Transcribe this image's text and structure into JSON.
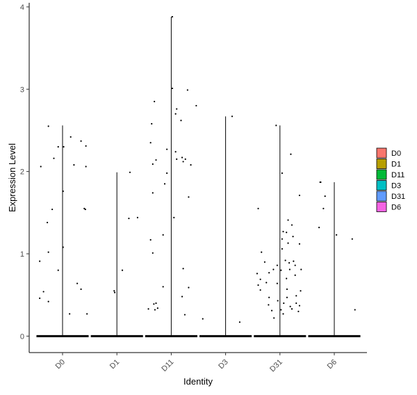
{
  "chart_data": {
    "type": "scatter",
    "subtype": "violin-jitter",
    "title": "",
    "xlabel": "Identity",
    "ylabel": "Expression Level",
    "ylim": [
      -0.2,
      4.05
    ],
    "yticks": [
      0,
      1,
      2,
      3,
      4
    ],
    "ytick_labels": [
      "0",
      "1",
      "2",
      "3",
      "4"
    ],
    "categories": [
      "D0",
      "D1",
      "D11",
      "D3",
      "D31",
      "D6"
    ],
    "legend": {
      "position": "right",
      "entries": [
        {
          "label": "D0",
          "color": "#F8766D"
        },
        {
          "label": "D1",
          "color": "#B79F00"
        },
        {
          "label": "D11",
          "color": "#00BA38"
        },
        {
          "label": "D3",
          "color": "#00BFC4"
        },
        {
          "label": "D31",
          "color": "#619CFF"
        },
        {
          "label": "D6",
          "color": "#F564E3"
        }
      ]
    },
    "grid": false,
    "violin_max": [
      2.56,
      1.99,
      3.88,
      2.67,
      2.56,
      1.87
    ],
    "series": [
      {
        "category": "D0",
        "points": [
          [
            -0.4,
            2.06
          ],
          [
            -0.26,
            2.55
          ],
          [
            -0.16,
            2.16
          ],
          [
            -0.08,
            2.3
          ],
          [
            0.02,
            2.3
          ],
          [
            0.15,
            2.42
          ],
          [
            0.21,
            2.08
          ],
          [
            0.34,
            2.37
          ],
          [
            0.43,
            2.31
          ],
          [
            0.43,
            2.06
          ],
          [
            -0.19,
            1.54
          ],
          [
            0.01,
            1.76
          ],
          [
            0.4,
            1.55
          ],
          [
            0.42,
            1.54
          ],
          [
            -0.28,
            1.38
          ],
          [
            0.01,
            1.08
          ],
          [
            -0.26,
            1.02
          ],
          [
            -0.42,
            0.91
          ],
          [
            -0.08,
            0.8
          ],
          [
            0.27,
            0.64
          ],
          [
            0.34,
            0.57
          ],
          [
            -0.35,
            0.54
          ],
          [
            -0.42,
            0.46
          ],
          [
            -0.26,
            0.42
          ],
          [
            0.13,
            0.27
          ],
          [
            0.45,
            0.27
          ]
        ]
      },
      {
        "category": "D1",
        "points": [
          [
            -0.05,
            0.55
          ],
          [
            -0.04,
            0.53
          ],
          [
            0.1,
            0.8
          ],
          [
            0.24,
            1.99
          ],
          [
            0.22,
            1.43
          ],
          [
            0.38,
            1.44
          ]
        ]
      },
      {
        "category": "D11",
        "points": [
          [
            0.02,
            3.88
          ],
          [
            0.02,
            3.01
          ],
          [
            0.3,
            2.99
          ],
          [
            0.1,
            2.76
          ],
          [
            0.08,
            2.7
          ],
          [
            -0.31,
            2.85
          ],
          [
            0.46,
            2.8
          ],
          [
            0.18,
            2.62
          ],
          [
            -0.36,
            2.58
          ],
          [
            -0.38,
            2.35
          ],
          [
            -0.08,
            2.27
          ],
          [
            0.08,
            2.24
          ],
          [
            -0.34,
            2.09
          ],
          [
            -0.28,
            2.14
          ],
          [
            0.1,
            2.15
          ],
          [
            0.2,
            2.17
          ],
          [
            0.26,
            2.15
          ],
          [
            0.36,
            2.08
          ],
          [
            0.22,
            2.12
          ],
          [
            -0.08,
            1.98
          ],
          [
            -0.12,
            1.85
          ],
          [
            -0.34,
            1.74
          ],
          [
            0.32,
            1.69
          ],
          [
            0.05,
            1.44
          ],
          [
            -0.15,
            1.23
          ],
          [
            -0.38,
            1.17
          ],
          [
            -0.34,
            1.01
          ],
          [
            0.22,
            0.82
          ],
          [
            -0.15,
            0.6
          ],
          [
            0.32,
            0.59
          ],
          [
            0.2,
            0.48
          ],
          [
            -0.32,
            0.39
          ],
          [
            -0.25,
            0.34
          ],
          [
            -0.28,
            0.4
          ],
          [
            -0.42,
            0.33
          ],
          [
            -0.3,
            0.32
          ],
          [
            0.25,
            0.26
          ]
        ]
      },
      {
        "category": "D3",
        "points": [
          [
            0.12,
            2.67
          ],
          [
            -0.42,
            0.21
          ],
          [
            0.26,
            0.17
          ]
        ]
      },
      {
        "category": "D31",
        "points": [
          [
            -0.07,
            2.56
          ],
          [
            0.2,
            2.21
          ],
          [
            0.04,
            1.98
          ],
          [
            0.36,
            1.71
          ],
          [
            -0.4,
            1.55
          ],
          [
            0.15,
            1.41
          ],
          [
            0.22,
            1.35
          ],
          [
            0.06,
            1.27
          ],
          [
            0.12,
            1.26
          ],
          [
            0.24,
            1.21
          ],
          [
            0.04,
            1.18
          ],
          [
            0.15,
            1.13
          ],
          [
            0.36,
            1.12
          ],
          [
            0.04,
            1.06
          ],
          [
            -0.34,
            1.02
          ],
          [
            0.1,
            0.92
          ],
          [
            -0.28,
            0.9
          ],
          [
            0.25,
            0.91
          ],
          [
            -0.05,
            0.86
          ],
          [
            0.17,
            0.89
          ],
          [
            0.28,
            0.86
          ],
          [
            -0.12,
            0.81
          ],
          [
            0.18,
            0.81
          ],
          [
            0.39,
            0.81
          ],
          [
            -0.2,
            0.77
          ],
          [
            0.02,
            0.8
          ],
          [
            -0.42,
            0.76
          ],
          [
            0.28,
            0.74
          ],
          [
            -0.36,
            0.69
          ],
          [
            0.12,
            0.7
          ],
          [
            -0.25,
            0.65
          ],
          [
            -0.05,
            0.64
          ],
          [
            0.38,
            0.55
          ],
          [
            -0.4,
            0.62
          ],
          [
            0.13,
            0.57
          ],
          [
            -0.36,
            0.56
          ],
          [
            0.3,
            0.49
          ],
          [
            -0.2,
            0.47
          ],
          [
            -0.04,
            0.43
          ],
          [
            0.13,
            0.47
          ],
          [
            0.3,
            0.4
          ],
          [
            -0.21,
            0.38
          ],
          [
            0.07,
            0.4
          ],
          [
            0.19,
            0.36
          ],
          [
            0.36,
            0.37
          ],
          [
            -0.15,
            0.31
          ],
          [
            0.02,
            0.32
          ],
          [
            0.34,
            0.3
          ],
          [
            -0.11,
            0.22
          ],
          [
            0.06,
            0.27
          ],
          [
            0.22,
            0.33
          ]
        ]
      },
      {
        "category": "D6",
        "points": [
          [
            -0.26,
            1.87
          ],
          [
            -0.25,
            1.87
          ],
          [
            -0.17,
            1.7
          ],
          [
            -0.2,
            1.55
          ],
          [
            -0.28,
            1.32
          ],
          [
            0.04,
            1.23
          ],
          [
            0.33,
            1.18
          ],
          [
            0.38,
            0.32
          ]
        ]
      }
    ]
  }
}
